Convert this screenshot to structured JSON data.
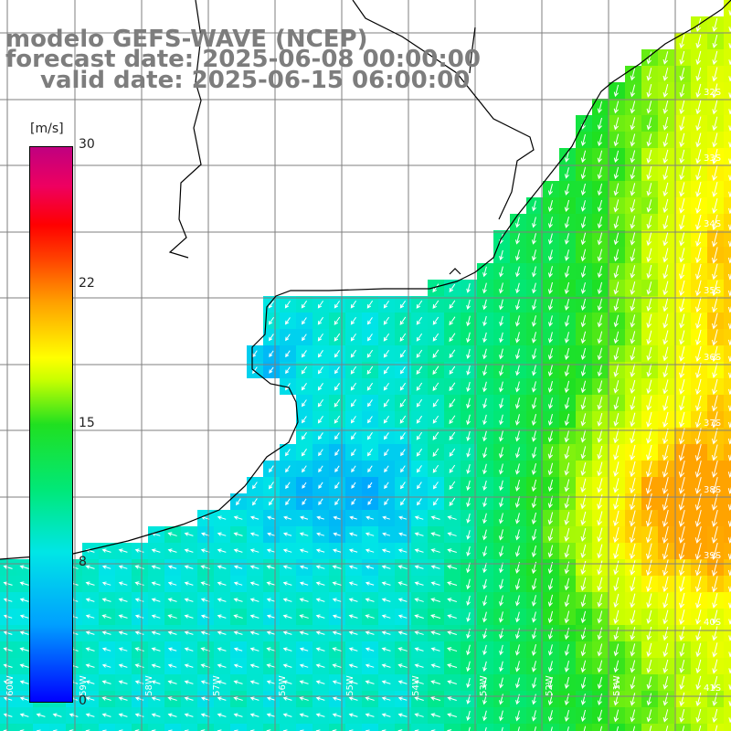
{
  "header": {
    "line1": "modelo GEFS-WAVE (NCEP)",
    "line2": "forecast date: 2025-06-08 00:00:00",
    "line3": "valid date: 2025-06-15 06:00:00"
  },
  "colorbar": {
    "unit": "[m/s]",
    "ticks": [
      "30",
      "22",
      "15",
      "8",
      "0"
    ],
    "tick_values": [
      30,
      22,
      15,
      8,
      0
    ],
    "range": [
      0,
      30
    ],
    "colors": [
      "#0000ff",
      "#00a0ff",
      "#00e6e6",
      "#00e87a",
      "#20e020",
      "#c8ff00",
      "#ffff00",
      "#ffa000",
      "#ff4000",
      "#ff0000",
      "#ee0060",
      "#c00080"
    ]
  },
  "map": {
    "lat_labels": [
      "32S",
      "33S",
      "34S",
      "35S",
      "36S",
      "37S",
      "38S",
      "39S",
      "40S",
      "41S"
    ],
    "lon_labels": [
      "60W",
      "59W",
      "58W",
      "57W",
      "56W",
      "55W",
      "54W",
      "53W",
      "52W",
      "51W"
    ],
    "background_color": "#ffffff",
    "grid_color": "#7f7f7f",
    "coast_color": "#000000",
    "arrow_color": "#ffffff"
  }
}
